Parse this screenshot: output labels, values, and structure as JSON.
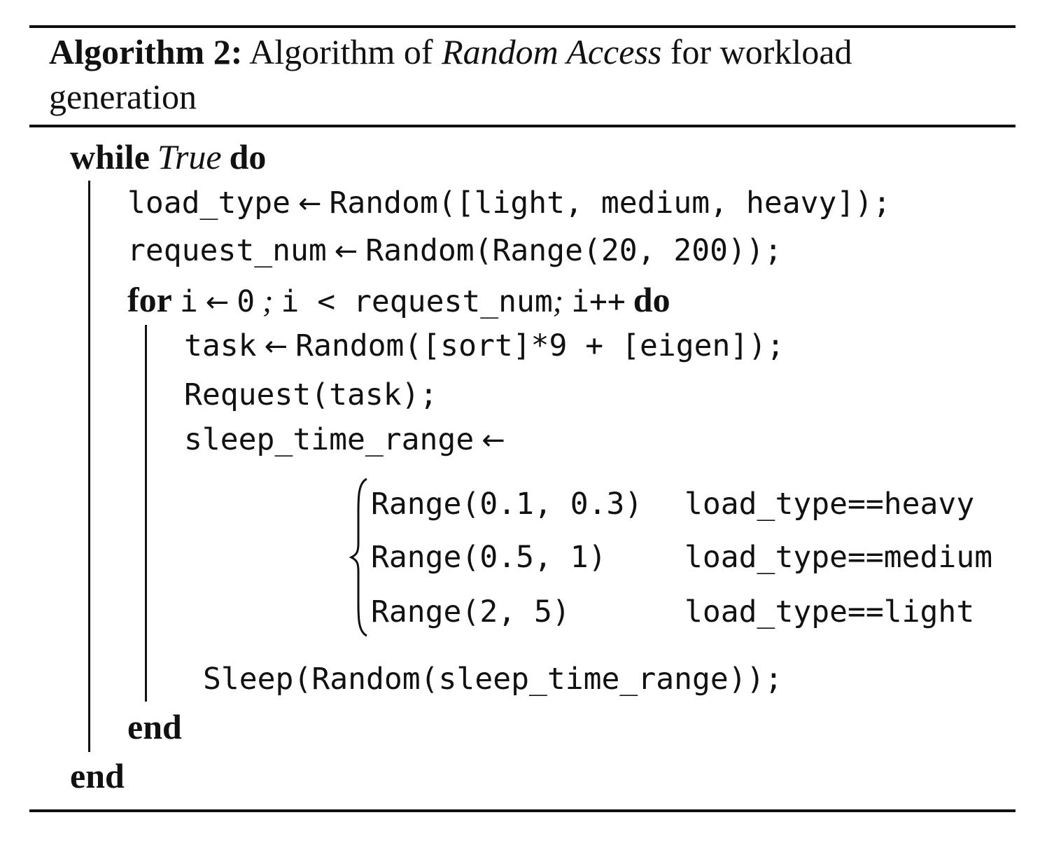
{
  "caption": {
    "label": "Algorithm 2:",
    "text_before": "Algorithm of",
    "italic": "Random Access",
    "text_after": "for workload",
    "line2": "generation"
  },
  "keywords": {
    "while": "while",
    "true": "True",
    "do": "do",
    "for": "for",
    "end": "end"
  },
  "arrow": "←",
  "lines": {
    "load_type_lhs": "load_type",
    "load_type_rhs": "Random([light, medium, heavy]);",
    "request_num_lhs": "request_num",
    "request_num_rhs": "Random(Range(20, 200));",
    "for_init_var": "i",
    "for_init_val": "0",
    "for_sep1": ";",
    "for_cond": "i < request_num",
    "for_sep2": ";",
    "for_incr": "i++",
    "task_lhs": "task",
    "task_rhs": "Random([sort]*9 + [eigen]);",
    "request_call": "Request(task);",
    "sleep_range_lhs": "sleep_time_range",
    "sleep_call": "Sleep(Random(sleep_time_range));"
  },
  "cases": [
    {
      "value": "Range(0.1, 0.3)",
      "condition": "load_type==heavy"
    },
    {
      "value": "Range(0.5, 1)",
      "condition": "load_type==medium"
    },
    {
      "value": "Range(2, 5)",
      "condition": "load_type==light"
    }
  ]
}
